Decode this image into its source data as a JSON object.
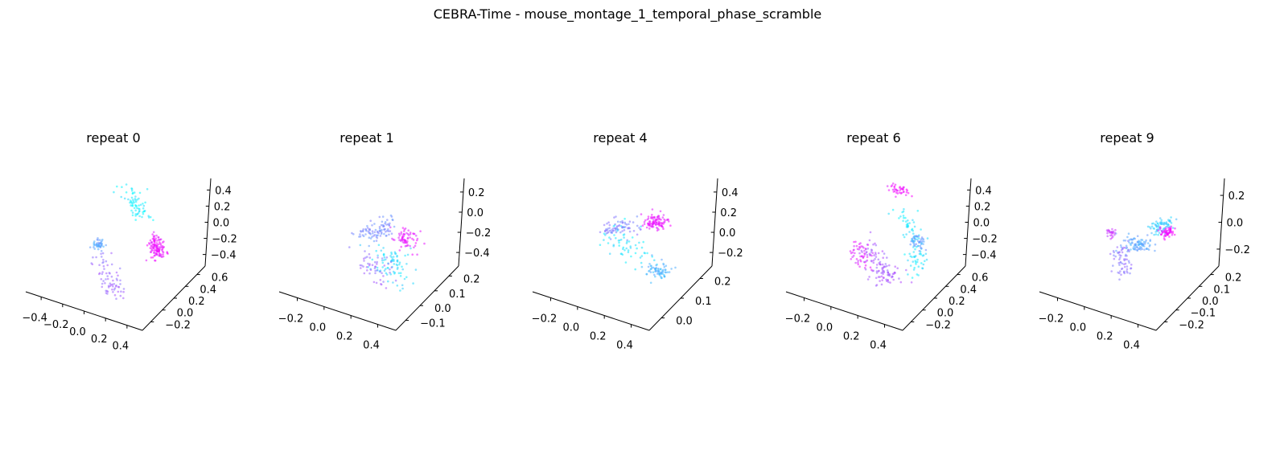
{
  "title": "CEBRA-Time - mouse_montage_1_temporal_phase_scramble",
  "colormap": "cool",
  "cmap_start": "#00ffff",
  "cmap_end": "#ff00ff",
  "chart_data": [
    {
      "type": "scatter",
      "projection": "3d",
      "title": "repeat 0",
      "x_ticks": [
        "−0.4",
        "−0.2",
        "0.0",
        "0.2",
        "0.4"
      ],
      "y_ticks": [
        "−0.2",
        "0.0",
        "0.2",
        "0.4",
        "0.6"
      ],
      "z_ticks": [
        "−0.4",
        "−0.2",
        "0.0",
        "0.2",
        "0.4"
      ],
      "color_by": "time",
      "clusters": [
        {
          "t": 0.08,
          "path": [
            [
              -0.05,
              0.15,
              0.55
            ],
            [
              0.05,
              0.25,
              0.35
            ],
            [
              0.1,
              0.3,
              0.15
            ]
          ],
          "n": 70,
          "spread": 0.05
        },
        {
          "t": 0.35,
          "path": [
            [
              -0.28,
              0.05,
              -0.15
            ],
            [
              -0.3,
              0.1,
              -0.2
            ]
          ],
          "n": 45,
          "spread": 0.03
        },
        {
          "t": 0.6,
          "path": [
            [
              -0.25,
              0.0,
              -0.25
            ],
            [
              -0.05,
              -0.1,
              -0.5
            ],
            [
              0.05,
              -0.15,
              -0.55
            ]
          ],
          "n": 70,
          "spread": 0.05
        },
        {
          "t": 0.92,
          "path": [
            [
              0.2,
              0.35,
              -0.1
            ],
            [
              0.22,
              0.38,
              -0.3
            ]
          ],
          "n": 120,
          "spread": 0.04
        }
      ]
    },
    {
      "type": "scatter",
      "projection": "3d",
      "title": "repeat 1",
      "x_ticks": [
        "−0.2",
        "0.0",
        "0.2",
        "0.4"
      ],
      "y_ticks": [
        "−0.1",
        "0.0",
        "0.1",
        "0.2"
      ],
      "z_ticks": [
        "−0.4",
        "−0.2",
        "0.0",
        "0.2"
      ],
      "color_by": "time",
      "clusters": [
        {
          "t": 0.15,
          "path": [
            [
              0.05,
              0.05,
              -0.2
            ],
            [
              0.25,
              0.1,
              -0.35
            ]
          ],
          "n": 80,
          "spread": 0.08
        },
        {
          "t": 0.45,
          "path": [
            [
              -0.15,
              0.05,
              0.0
            ],
            [
              0.1,
              0.15,
              0.15
            ]
          ],
          "n": 90,
          "spread": 0.05
        },
        {
          "t": 0.6,
          "path": [
            [
              -0.1,
              0.0,
              -0.3
            ],
            [
              0.15,
              0.05,
              -0.4
            ]
          ],
          "n": 50,
          "spread": 0.08
        },
        {
          "t": 0.9,
          "path": [
            [
              0.2,
              0.15,
              0.05
            ],
            [
              0.35,
              0.2,
              0.0
            ]
          ],
          "n": 70,
          "spread": 0.06
        }
      ]
    },
    {
      "type": "scatter",
      "projection": "3d",
      "title": "repeat 4",
      "x_ticks": [
        "−0.2",
        "0.0",
        "0.2",
        "0.4"
      ],
      "y_ticks": [
        "0.0",
        "0.1",
        "0.2"
      ],
      "z_ticks": [
        "−0.2",
        "0.0",
        "0.2",
        "0.4"
      ],
      "color_by": "time",
      "clusters": [
        {
          "t": 0.1,
          "path": [
            [
              -0.2,
              0.05,
              -0.05
            ],
            [
              0.1,
              0.1,
              -0.2
            ]
          ],
          "n": 60,
          "spread": 0.08
        },
        {
          "t": 0.3,
          "path": [
            [
              0.2,
              0.1,
              -0.35
            ],
            [
              0.35,
              0.15,
              -0.35
            ]
          ],
          "n": 70,
          "spread": 0.04
        },
        {
          "t": 0.5,
          "path": [
            [
              -0.25,
              0.0,
              0.05
            ],
            [
              0.05,
              0.1,
              0.15
            ]
          ],
          "n": 70,
          "spread": 0.04
        },
        {
          "t": 0.92,
          "path": [
            [
              0.15,
              0.15,
              0.2
            ],
            [
              0.3,
              0.2,
              0.25
            ]
          ],
          "n": 100,
          "spread": 0.04
        }
      ]
    },
    {
      "type": "scatter",
      "projection": "3d",
      "title": "repeat 6",
      "x_ticks": [
        "−0.2",
        "0.0",
        "0.2",
        "0.4"
      ],
      "y_ticks": [
        "−0.2",
        "0.0",
        "0.2",
        "0.4",
        "0.6"
      ],
      "z_ticks": [
        "−0.4",
        "−0.2",
        "0.0",
        "0.2",
        "0.4"
      ],
      "color_by": "time",
      "clusters": [
        {
          "t": 0.1,
          "path": [
            [
              0.1,
              0.2,
              0.3
            ],
            [
              0.25,
              0.3,
              -0.1
            ],
            [
              0.25,
              0.3,
              -0.45
            ]
          ],
          "n": 90,
          "spread": 0.05
        },
        {
          "t": 0.4,
          "path": [
            [
              0.2,
              0.3,
              -0.05
            ],
            [
              0.25,
              0.35,
              -0.15
            ]
          ],
          "n": 40,
          "spread": 0.03
        },
        {
          "t": 0.65,
          "path": [
            [
              -0.15,
              0.0,
              -0.1
            ],
            [
              -0.05,
              0.05,
              -0.4
            ],
            [
              0.1,
              0.1,
              -0.45
            ]
          ],
          "n": 110,
          "spread": 0.06
        },
        {
          "t": 0.95,
          "path": [
            [
              0.0,
              0.2,
              0.55
            ],
            [
              0.15,
              0.3,
              0.5
            ]
          ],
          "n": 40,
          "spread": 0.03
        },
        {
          "t": 0.88,
          "path": [
            [
              -0.25,
              -0.05,
              -0.1
            ],
            [
              -0.2,
              0.0,
              -0.35
            ]
          ],
          "n": 50,
          "spread": 0.06
        }
      ]
    },
    {
      "type": "scatter",
      "projection": "3d",
      "title": "repeat 9",
      "x_ticks": [
        "−0.2",
        "0.0",
        "0.2",
        "0.4"
      ],
      "y_ticks": [
        "−0.2",
        "−0.1",
        "0.0",
        "0.1",
        "0.2"
      ],
      "z_ticks": [
        "−0.2",
        "0.0",
        "0.2"
      ],
      "color_by": "time",
      "clusters": [
        {
          "t": 0.2,
          "path": [
            [
              0.15,
              0.1,
              0.15
            ],
            [
              0.3,
              0.15,
              0.25
            ]
          ],
          "n": 70,
          "spread": 0.04
        },
        {
          "t": 0.35,
          "path": [
            [
              -0.1,
              0.0,
              -0.05
            ],
            [
              0.1,
              0.05,
              -0.05
            ]
          ],
          "n": 90,
          "spread": 0.05
        },
        {
          "t": 0.55,
          "path": [
            [
              -0.15,
              -0.05,
              -0.1
            ],
            [
              -0.05,
              -0.1,
              -0.35
            ]
          ],
          "n": 60,
          "spread": 0.05
        },
        {
          "t": 0.8,
          "path": [
            [
              -0.25,
              -0.05,
              0.05
            ],
            [
              -0.22,
              -0.02,
              0.02
            ]
          ],
          "n": 25,
          "spread": 0.02
        },
        {
          "t": 0.95,
          "path": [
            [
              0.25,
              0.15,
              0.1
            ],
            [
              0.3,
              0.2,
              0.12
            ]
          ],
          "n": 60,
          "spread": 0.03
        }
      ]
    }
  ]
}
